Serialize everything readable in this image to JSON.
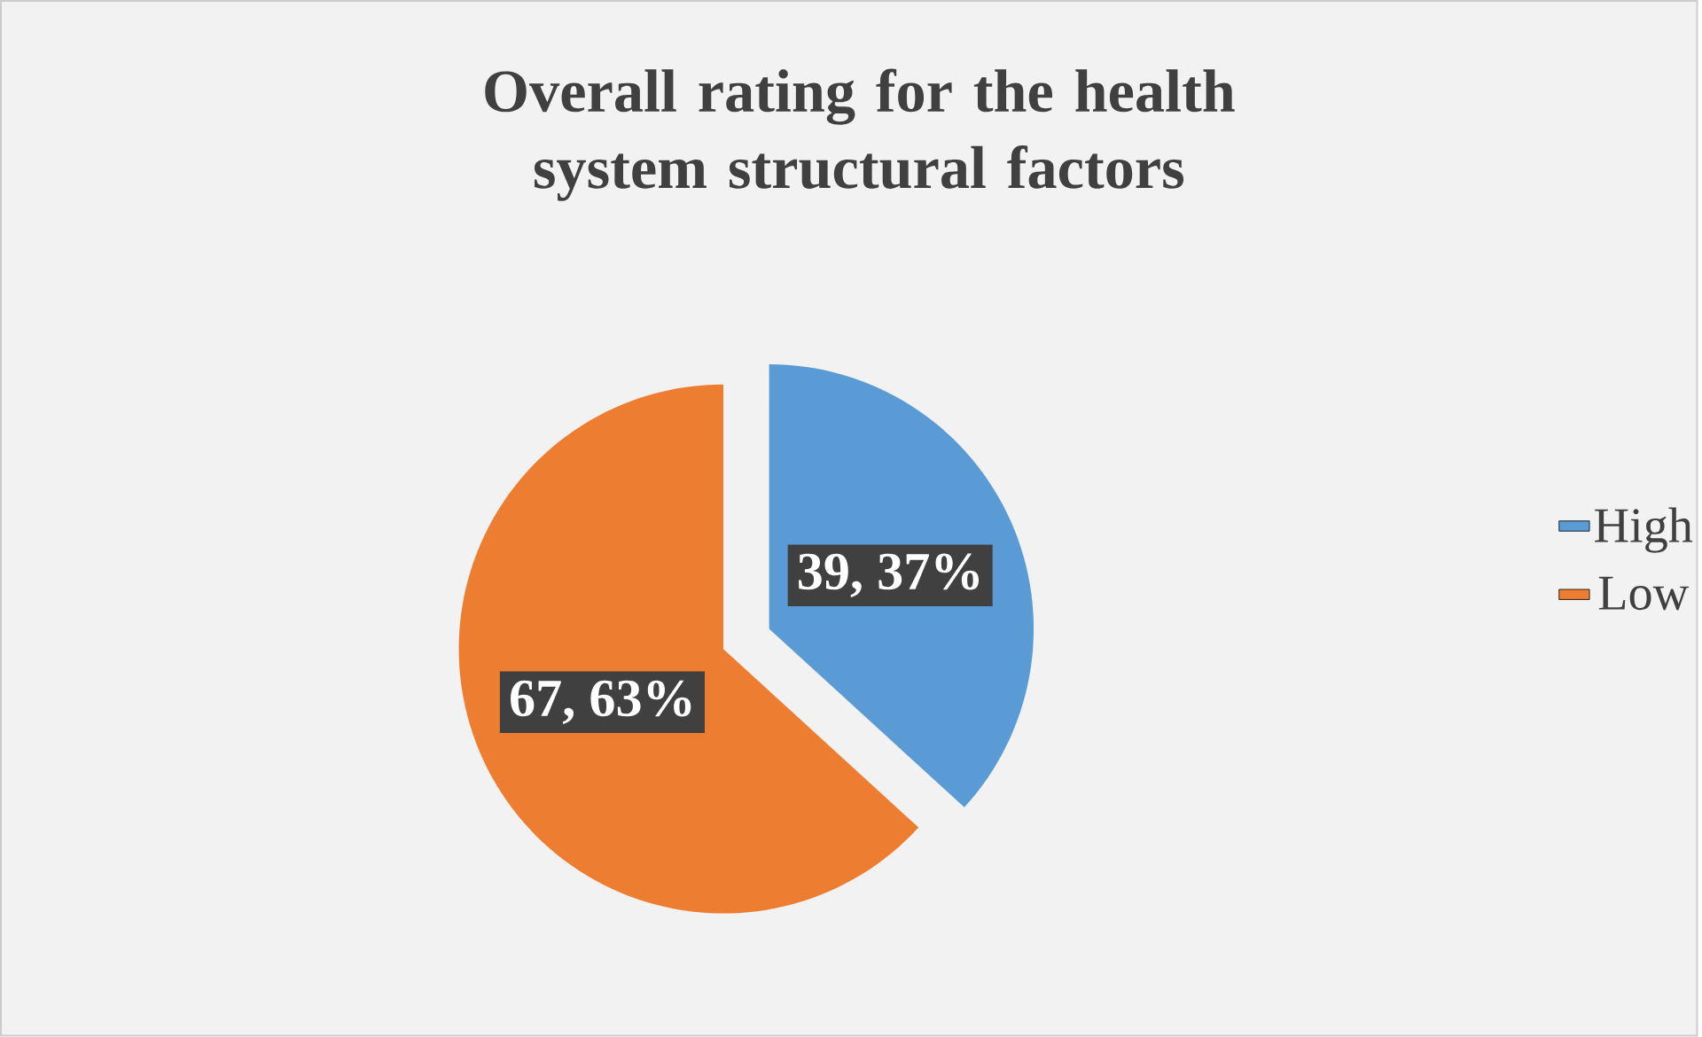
{
  "chart_data": {
    "type": "pie",
    "title": "Overall rating for the health system structural factors",
    "categories": [
      "High",
      "Low"
    ],
    "values": [
      39,
      67
    ],
    "colors": [
      "#5b9bd5",
      "#ed7d31"
    ],
    "value_labels": [
      "39, 37%",
      "67, 63%"
    ],
    "legend": "right"
  }
}
